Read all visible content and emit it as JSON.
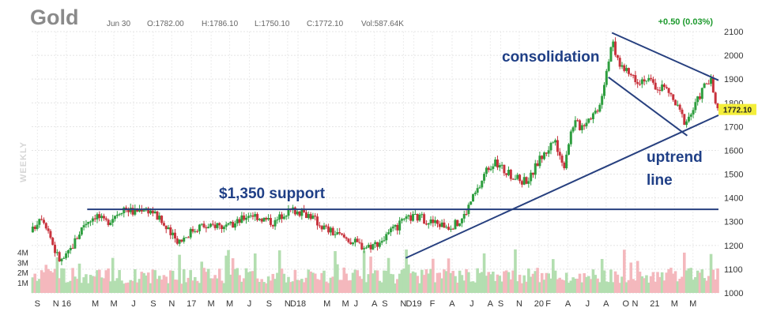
{
  "header": {
    "symbol": "Gold",
    "date": "Jun 30",
    "open": "O:1782.00",
    "high": "H:1786.10",
    "low": "L:1750.10",
    "close": "C:1772.10",
    "volume": "Vol:587.64K",
    "change": "+0.50 (0.03%)",
    "period": "WEEKLY"
  },
  "last_price_label": "1772.10",
  "annotations": {
    "support": "$1,350 support",
    "consolidation": "consolidation",
    "uptrend_1": "uptrend",
    "uptrend_2": "line"
  },
  "colors": {
    "up": "#2e9e3f",
    "down": "#c8333d",
    "vol_up": "#b3deb0",
    "vol_down": "#f4b8bd",
    "trendline": "#27407f",
    "annotation": "#1f3f86",
    "last_price_bg": "#f4ee3a"
  },
  "chart_data": {
    "type": "candlestick",
    "title": "Gold",
    "x_ticks": [
      {
        "label": "S",
        "x": 2016.67
      },
      {
        "label": "N",
        "x": 2016.83
      },
      {
        "label": "16",
        "x": 2016.92
      },
      {
        "label": "M",
        "x": 2017.17
      },
      {
        "label": "M",
        "x": 2017.33
      },
      {
        "label": "J",
        "x": 2017.5
      },
      {
        "label": "S",
        "x": 2017.67
      },
      {
        "label": "N",
        "x": 2017.83
      },
      {
        "label": "17",
        "x": 2018.0
      },
      {
        "label": "M",
        "x": 2018.17
      },
      {
        "label": "M",
        "x": 2018.33
      },
      {
        "label": "J",
        "x": 2018.5
      },
      {
        "label": "S",
        "x": 2018.67
      },
      {
        "label": "N",
        "x": 2018.83
      },
      {
        "label": "D18",
        "x": 2018.92
      },
      {
        "label": "M",
        "x": 2019.17
      },
      {
        "label": "M",
        "x": 2019.33
      },
      {
        "label": "J",
        "x": 2019.42
      },
      {
        "label": "A",
        "x": 2019.58
      },
      {
        "label": "S",
        "x": 2019.67
      },
      {
        "label": "N",
        "x": 2019.83
      },
      {
        "label": "D19",
        "x": 2019.92
      },
      {
        "label": "F",
        "x": 2020.08
      },
      {
        "label": "A",
        "x": 2020.25
      },
      {
        "label": "J",
        "x": 2020.42
      },
      {
        "label": "A",
        "x": 2020.58
      },
      {
        "label": "S",
        "x": 2020.67
      },
      {
        "label": "N",
        "x": 2020.83
      },
      {
        "label": "20",
        "x": 2021.0
      },
      {
        "label": "F",
        "x": 2021.08
      },
      {
        "label": "A",
        "x": 2021.25
      },
      {
        "label": "J",
        "x": 2021.42
      },
      {
        "label": "A",
        "x": 2021.58
      },
      {
        "label": "O",
        "x": 2021.75
      },
      {
        "label": "N",
        "x": 2021.83
      },
      {
        "label": "21",
        "x": 2022.0
      },
      {
        "label": "M",
        "x": 2022.17
      },
      {
        "label": "M",
        "x": 2022.33
      }
    ],
    "y_ticks": [
      1000,
      1100,
      1200,
      1300,
      1400,
      1500,
      1600,
      1700,
      1800,
      1900,
      2000,
      2100
    ],
    "ylim": [
      1000,
      2100
    ],
    "xlim": [
      2016.62,
      2022.55
    ],
    "volume_ticks": [
      "1M",
      "2M",
      "3M",
      "4M"
    ],
    "volume_max": 5.2,
    "last_price": 1772.1,
    "price_path": [
      [
        2016.62,
        1255
      ],
      [
        2016.7,
        1332
      ],
      [
        2016.76,
        1272
      ],
      [
        2016.82,
        1180
      ],
      [
        2016.87,
        1132
      ],
      [
        2016.93,
        1160
      ],
      [
        2016.99,
        1215
      ],
      [
        2017.07,
        1290
      ],
      [
        2017.13,
        1315
      ],
      [
        2017.18,
        1330
      ],
      [
        2017.25,
        1295
      ],
      [
        2017.3,
        1310
      ],
      [
        2017.35,
        1335
      ],
      [
        2017.42,
        1362
      ],
      [
        2017.5,
        1340
      ],
      [
        2017.58,
        1360
      ],
      [
        2017.66,
        1345
      ],
      [
        2017.74,
        1300
      ],
      [
        2017.79,
        1265
      ],
      [
        2017.85,
        1230
      ],
      [
        2017.9,
        1222
      ],
      [
        2017.95,
        1240
      ],
      [
        2018.0,
        1262
      ],
      [
        2018.08,
        1285
      ],
      [
        2018.15,
        1272
      ],
      [
        2018.22,
        1292
      ],
      [
        2018.3,
        1270
      ],
      [
        2018.37,
        1290
      ],
      [
        2018.44,
        1312
      ],
      [
        2018.5,
        1336
      ],
      [
        2018.56,
        1325
      ],
      [
        2018.63,
        1310
      ],
      [
        2018.72,
        1296
      ],
      [
        2018.8,
        1340
      ],
      [
        2018.88,
        1350
      ],
      [
        2018.95,
        1338
      ],
      [
        2019.02,
        1330
      ],
      [
        2019.1,
        1292
      ],
      [
        2019.17,
        1268
      ],
      [
        2019.25,
        1247
      ],
      [
        2019.33,
        1232
      ],
      [
        2019.42,
        1210
      ],
      [
        2019.5,
        1195
      ],
      [
        2019.58,
        1205
      ],
      [
        2019.66,
        1228
      ],
      [
        2019.74,
        1262
      ],
      [
        2019.82,
        1296
      ],
      [
        2019.9,
        1320
      ],
      [
        2019.98,
        1316
      ],
      [
        2020.06,
        1300
      ],
      [
        2020.14,
        1290
      ],
      [
        2020.22,
        1282
      ],
      [
        2020.3,
        1292
      ],
      [
        2020.36,
        1330
      ],
      [
        2020.42,
        1395
      ],
      [
        2020.48,
        1440
      ],
      [
        2020.54,
        1515
      ],
      [
        2020.6,
        1548
      ],
      [
        2020.66,
        1535
      ],
      [
        2020.72,
        1505
      ],
      [
        2020.78,
        1490
      ],
      [
        2020.85,
        1472
      ],
      [
        2020.92,
        1482
      ],
      [
        2021.0,
        1560
      ],
      [
        2021.06,
        1592
      ],
      [
        2021.12,
        1640
      ],
      [
        2021.17,
        1605
      ],
      [
        2021.21,
        1522
      ],
      [
        2021.25,
        1625
      ],
      [
        2021.3,
        1722
      ],
      [
        2021.36,
        1700
      ],
      [
        2021.42,
        1735
      ],
      [
        2021.48,
        1760
      ],
      [
        2021.52,
        1790
      ],
      [
        2021.56,
        1880
      ],
      [
        2021.6,
        1985
      ],
      [
        2021.63,
        2065
      ],
      [
        2021.66,
        2000
      ],
      [
        2021.7,
        1965
      ],
      [
        2021.75,
        1930
      ],
      [
        2021.81,
        1915
      ],
      [
        2021.86,
        1895
      ],
      [
        2021.91,
        1905
      ],
      [
        2021.97,
        1885
      ],
      [
        2022.02,
        1860
      ],
      [
        2022.07,
        1870
      ],
      [
        2022.12,
        1845
      ],
      [
        2022.17,
        1800
      ],
      [
        2022.22,
        1760
      ],
      [
        2022.26,
        1720
      ],
      [
        2022.3,
        1745
      ],
      [
        2022.35,
        1790
      ],
      [
        2022.4,
        1845
      ],
      [
        2022.44,
        1885
      ],
      [
        2022.49,
        1888
      ],
      [
        2022.53,
        1772
      ]
    ],
    "trendlines": [
      {
        "name": "support",
        "points": [
          [
            2017.1,
            1352
          ],
          [
            2022.55,
            1352
          ]
        ]
      },
      {
        "name": "uptrend",
        "points": [
          [
            2019.85,
            1147
          ],
          [
            2022.55,
            1748
          ]
        ]
      },
      {
        "name": "wedge-upper",
        "points": [
          [
            2021.63,
            2095
          ],
          [
            2022.55,
            1895
          ]
        ]
      },
      {
        "name": "wedge-lower",
        "points": [
          [
            2021.6,
            1908
          ],
          [
            2022.28,
            1662
          ]
        ]
      }
    ]
  }
}
